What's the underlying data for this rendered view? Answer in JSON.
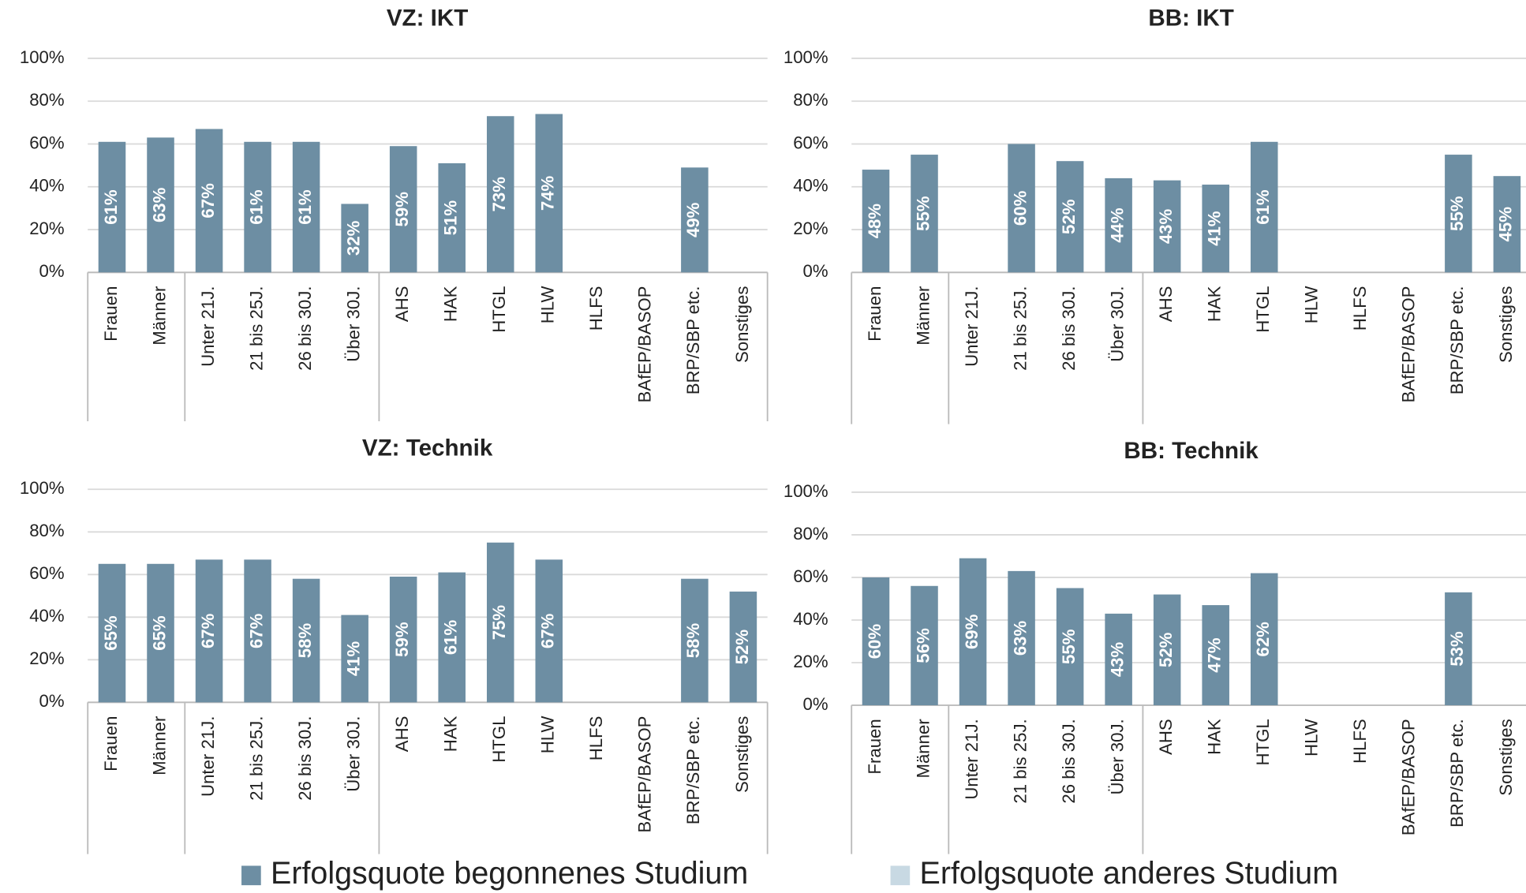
{
  "chart_data": [
    {
      "type": "bar",
      "title": "VZ: IKT",
      "categories": [
        "Frauen",
        "Männer",
        "Unter 21J.",
        "21 bis 25J.",
        "26 bis 30J.",
        "Über 30J.",
        "AHS",
        "HAK",
        "HTGL",
        "HLW",
        "HLFS",
        "BAfEP/BASOP",
        "BRP/SBP etc.",
        "Sonstiges"
      ],
      "series": [
        {
          "name": "Erfolgsquote begonnenes Studium",
          "color": "#6d8ea3",
          "values": [
            61,
            63,
            67,
            61,
            61,
            32,
            59,
            51,
            73,
            74,
            null,
            null,
            49,
            null
          ],
          "value_labels": [
            "61%",
            "63%",
            "67%",
            "61%",
            "61%",
            "32%",
            "59%",
            "51%",
            "73%",
            "74%",
            null,
            null,
            "49%",
            null
          ]
        },
        {
          "name": "Erfolgsquote anderes Studium",
          "color": "#c8d9e3",
          "values": [
            null,
            null,
            null,
            null,
            null,
            null,
            null,
            null,
            null,
            null,
            null,
            null,
            null,
            null
          ]
        }
      ],
      "ylim": [
        0,
        100
      ],
      "yticks": [
        {
          "value": 0,
          "label": "0%"
        },
        {
          "value": 20,
          "label": "20%"
        },
        {
          "value": 40,
          "label": "40%"
        },
        {
          "value": 60,
          "label": "60%"
        },
        {
          "value": 80,
          "label": "80%"
        },
        {
          "value": 100,
          "label": "100%"
        }
      ],
      "grid": true
    },
    {
      "type": "bar",
      "title": "BB: IKT",
      "categories": [
        "Frauen",
        "Männer",
        "Unter 21J.",
        "21 bis 25J.",
        "26 bis 30J.",
        "Über 30J.",
        "AHS",
        "HAK",
        "HTGL",
        "HLW",
        "HLFS",
        "BAfEP/BASOP",
        "BRP/SBP etc.",
        "Sonstiges"
      ],
      "series": [
        {
          "name": "Erfolgsquote begonnenes Studium",
          "color": "#6d8ea3",
          "values": [
            48,
            55,
            null,
            60,
            52,
            44,
            43,
            41,
            61,
            null,
            null,
            null,
            55,
            45
          ],
          "value_labels": [
            "48%",
            "55%",
            null,
            "60%",
            "52%",
            "44%",
            "43%",
            "41%",
            "61%",
            null,
            null,
            null,
            "55%",
            "45%"
          ]
        },
        {
          "name": "Erfolgsquote anderes Studium",
          "color": "#c8d9e3",
          "values": [
            null,
            null,
            null,
            null,
            null,
            null,
            null,
            null,
            null,
            null,
            null,
            null,
            null,
            null
          ]
        }
      ],
      "ylim": [
        0,
        100
      ],
      "yticks": [
        {
          "value": 0,
          "label": "0%"
        },
        {
          "value": 20,
          "label": "20%"
        },
        {
          "value": 40,
          "label": "40%"
        },
        {
          "value": 60,
          "label": "60%"
        },
        {
          "value": 80,
          "label": "80%"
        },
        {
          "value": 100,
          "label": "100%"
        }
      ],
      "grid": true
    },
    {
      "type": "bar",
      "title": "VZ: Technik",
      "categories": [
        "Frauen",
        "Männer",
        "Unter 21J.",
        "21 bis 25J.",
        "26 bis 30J.",
        "Über 30J.",
        "AHS",
        "HAK",
        "HTGL",
        "HLW",
        "HLFS",
        "BAfEP/BASOP",
        "BRP/SBP etc.",
        "Sonstiges"
      ],
      "series": [
        {
          "name": "Erfolgsquote begonnenes Studium",
          "color": "#6d8ea3",
          "values": [
            65,
            65,
            67,
            67,
            58,
            41,
            59,
            61,
            75,
            67,
            null,
            null,
            58,
            52
          ],
          "value_labels": [
            "65%",
            "65%",
            "67%",
            "67%",
            "58%",
            "41%",
            "59%",
            "61%",
            "75%",
            "67%",
            null,
            null,
            "58%",
            "52%"
          ]
        },
        {
          "name": "Erfolgsquote anderes Studium",
          "color": "#c8d9e3",
          "values": [
            null,
            null,
            null,
            null,
            null,
            null,
            null,
            null,
            null,
            null,
            null,
            null,
            null,
            null
          ]
        }
      ],
      "ylim": [
        0,
        100
      ],
      "yticks": [
        {
          "value": 0,
          "label": "0%"
        },
        {
          "value": 20,
          "label": "20%"
        },
        {
          "value": 40,
          "label": "40%"
        },
        {
          "value": 60,
          "label": "60%"
        },
        {
          "value": 80,
          "label": "80%"
        },
        {
          "value": 100,
          "label": "100%"
        }
      ],
      "grid": true
    },
    {
      "type": "bar",
      "title": "BB: Technik",
      "categories": [
        "Frauen",
        "Männer",
        "Unter 21J.",
        "21 bis 25J.",
        "26 bis 30J.",
        "Über 30J.",
        "AHS",
        "HAK",
        "HTGL",
        "HLW",
        "HLFS",
        "BAfEP/BASOP",
        "BRP/SBP etc.",
        "Sonstiges"
      ],
      "series": [
        {
          "name": "Erfolgsquote begonnenes Studium",
          "color": "#6d8ea3",
          "values": [
            60,
            56,
            69,
            63,
            55,
            43,
            52,
            47,
            62,
            null,
            null,
            null,
            53,
            null
          ],
          "value_labels": [
            "60%",
            "56%",
            "69%",
            "63%",
            "55%",
            "43%",
            "52%",
            "47%",
            "62%",
            null,
            null,
            null,
            "53%",
            null
          ]
        },
        {
          "name": "Erfolgsquote anderes Studium",
          "color": "#c8d9e3",
          "values": [
            null,
            null,
            null,
            null,
            null,
            null,
            null,
            null,
            null,
            null,
            null,
            null,
            null,
            null
          ]
        }
      ],
      "ylim": [
        0,
        100
      ],
      "yticks": [
        {
          "value": 0,
          "label": "0%"
        },
        {
          "value": 20,
          "label": "20%"
        },
        {
          "value": 40,
          "label": "40%"
        },
        {
          "value": 60,
          "label": "60%"
        },
        {
          "value": 80,
          "label": "80%"
        },
        {
          "value": 100,
          "label": "100%"
        }
      ],
      "grid": true
    }
  ]
}
